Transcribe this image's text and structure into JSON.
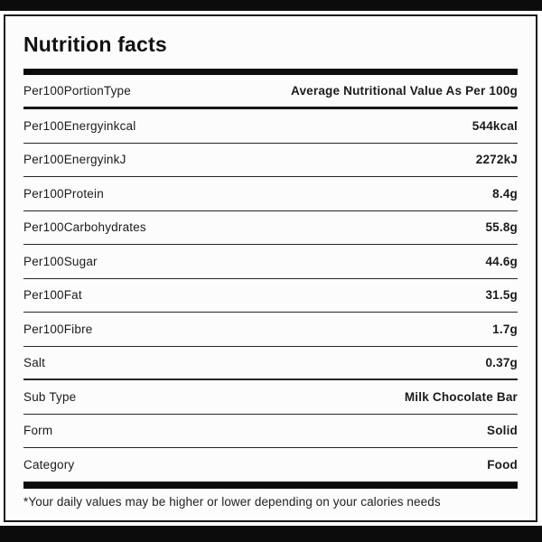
{
  "title": "Nutrition facts",
  "table": {
    "header": {
      "label": "Per100PortionType",
      "value": "Average Nutritional Value As Per 100g"
    },
    "rows": [
      {
        "label": "Per100Energyinkcal",
        "value": "544kcal"
      },
      {
        "label": "Per100EnergyinkJ",
        "value": "2272kJ"
      },
      {
        "label": "Per100Protein",
        "value": "8.4g"
      },
      {
        "label": "Per100Carbohydrates",
        "value": "55.8g"
      },
      {
        "label": "Per100Sugar",
        "value": "44.6g"
      },
      {
        "label": "Per100Fat",
        "value": "31.5g"
      },
      {
        "label": "Per100Fibre",
        "value": "1.7g"
      },
      {
        "label": "Salt",
        "value": "0.37g"
      },
      {
        "label": "Sub Type",
        "value": "Milk Chocolate Bar"
      },
      {
        "label": "Form",
        "value": "Solid"
      },
      {
        "label": "Category",
        "value": "Food"
      }
    ]
  },
  "footnote": "*Your daily values may be higher or lower depending on your calories needs",
  "colors": {
    "text": "#1b1b1b",
    "rule": "#0c0c0c",
    "separator": "#272727",
    "card_background": "#fcfcfc",
    "page_background": "#ffffff"
  }
}
